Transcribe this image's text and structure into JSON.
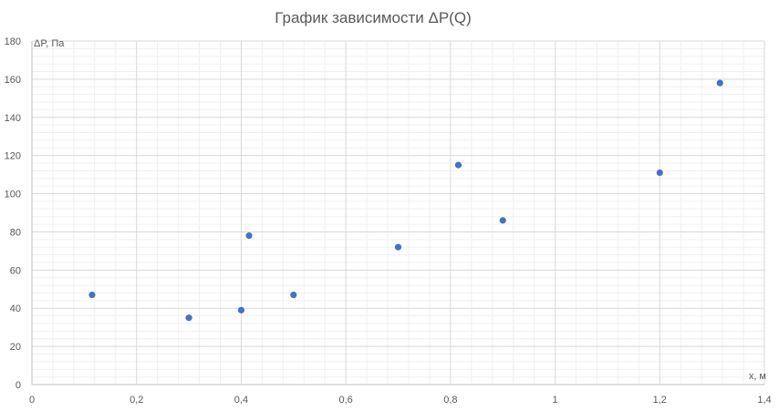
{
  "chart_data": {
    "type": "scatter",
    "title": "График зависимости ΔP(Q)",
    "xlabel": "x, м",
    "ylabel": "ΔP, Па",
    "xlim": [
      0,
      1.4
    ],
    "ylim": [
      0,
      180
    ],
    "x_ticks": [
      0,
      0.2,
      0.4,
      0.6,
      0.8,
      1,
      1.2,
      1.4
    ],
    "x_tick_labels": [
      "0",
      "0,2",
      "0,4",
      "0,6",
      "0,8",
      "1",
      "1,2",
      "1,4"
    ],
    "y_ticks": [
      0,
      20,
      40,
      60,
      80,
      100,
      120,
      140,
      160,
      180
    ],
    "y_tick_labels": [
      "0",
      "20",
      "40",
      "60",
      "80",
      "100",
      "120",
      "140",
      "160",
      "180"
    ],
    "grid": "major and minor",
    "legend": "none",
    "series": [
      {
        "color": "#4472c4",
        "points": [
          {
            "x": 0.115,
            "y": 47
          },
          {
            "x": 0.3,
            "y": 35
          },
          {
            "x": 0.4,
            "y": 39
          },
          {
            "x": 0.415,
            "y": 78
          },
          {
            "x": 0.5,
            "y": 47
          },
          {
            "x": 0.7,
            "y": 72
          },
          {
            "x": 0.815,
            "y": 115
          },
          {
            "x": 0.9,
            "y": 86
          },
          {
            "x": 1.2,
            "y": 111
          },
          {
            "x": 1.315,
            "y": 158
          }
        ]
      }
    ],
    "colors": {
      "major_grid": "#d9d9d9",
      "minor_grid": "#f0f0f0",
      "axis": "#bfbfbf",
      "text": "#595959",
      "marker": "#4472c4"
    }
  }
}
